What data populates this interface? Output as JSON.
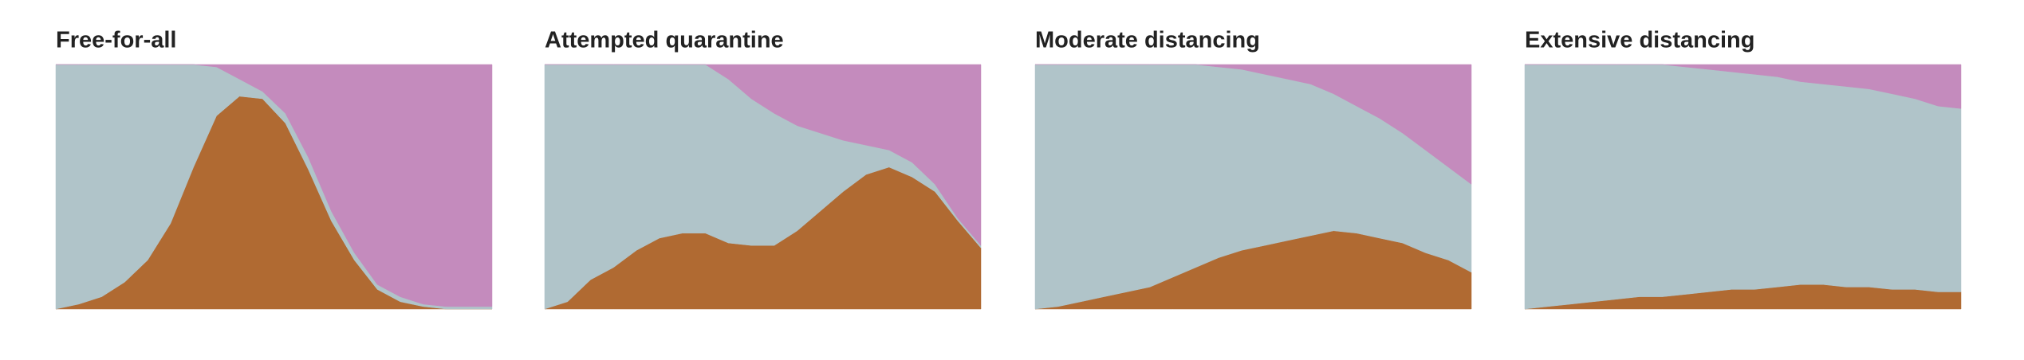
{
  "chart_data": [
    {
      "type": "area",
      "title": "Free-for-all",
      "stacked": true,
      "ylim": [
        0,
        100
      ],
      "series": [
        {
          "color": "#b06a32",
          "values": [
            0,
            2,
            5,
            11,
            20,
            35,
            58,
            79,
            87,
            86,
            76,
            57,
            36,
            20,
            8,
            3,
            1,
            0,
            0,
            0
          ]
        },
        {
          "color": "#b0c4c9",
          "values": [
            100,
            98,
            95,
            89,
            80,
            65,
            42,
            20,
            7,
            3,
            4,
            5,
            4,
            3,
            2,
            2,
            1,
            1,
            1,
            1
          ]
        },
        {
          "color": "#c48bbd",
          "values": [
            0,
            0,
            0,
            0,
            0,
            0,
            0,
            1,
            6,
            11,
            20,
            38,
            60,
            77,
            90,
            95,
            98,
            99,
            99,
            99
          ]
        }
      ]
    },
    {
      "type": "area",
      "title": "Attempted quarantine",
      "stacked": true,
      "ylim": [
        0,
        100
      ],
      "series": [
        {
          "color": "#b06a32",
          "values": [
            0,
            3,
            12,
            17,
            24,
            29,
            31,
            31,
            27,
            26,
            26,
            32,
            40,
            48,
            55,
            58,
            54,
            48,
            36,
            25
          ]
        },
        {
          "color": "#b0c4c9",
          "values": [
            100,
            97,
            88,
            83,
            76,
            71,
            69,
            69,
            67,
            60,
            54,
            43,
            32,
            21,
            12,
            7,
            6,
            3,
            1,
            1
          ]
        },
        {
          "color": "#c48bbd",
          "values": [
            0,
            0,
            0,
            0,
            0,
            0,
            0,
            0,
            6,
            14,
            20,
            25,
            28,
            31,
            33,
            35,
            40,
            49,
            63,
            74
          ]
        }
      ]
    },
    {
      "type": "area",
      "title": "Moderate distancing",
      "stacked": true,
      "ylim": [
        0,
        100
      ],
      "series": [
        {
          "color": "#b06a32",
          "values": [
            0,
            1,
            3,
            5,
            7,
            9,
            13,
            17,
            21,
            24,
            26,
            28,
            30,
            32,
            31,
            29,
            27,
            23,
            20,
            15
          ]
        },
        {
          "color": "#b0c4c9",
          "values": [
            100,
            99,
            97,
            95,
            93,
            91,
            87,
            83,
            78,
            74,
            70,
            66,
            62,
            56,
            52,
            49,
            45,
            42,
            38,
            36
          ]
        },
        {
          "color": "#c48bbd",
          "values": [
            0,
            0,
            0,
            0,
            0,
            0,
            0,
            0,
            1,
            2,
            4,
            6,
            8,
            12,
            17,
            22,
            28,
            35,
            42,
            49
          ]
        }
      ]
    },
    {
      "type": "area",
      "title": "Extensive distancing",
      "stacked": true,
      "ylim": [
        0,
        100
      ],
      "series": [
        {
          "color": "#b06a32",
          "values": [
            0,
            1,
            2,
            3,
            4,
            5,
            5,
            6,
            7,
            8,
            8,
            9,
            10,
            10,
            9,
            9,
            8,
            8,
            7,
            7
          ]
        },
        {
          "color": "#b0c4c9",
          "values": [
            100,
            99,
            98,
            97,
            96,
            95,
            95,
            93,
            91,
            89,
            88,
            86,
            83,
            82,
            82,
            81,
            80,
            78,
            76,
            75
          ]
        },
        {
          "color": "#c48bbd",
          "values": [
            0,
            0,
            0,
            0,
            0,
            0,
            0,
            1,
            2,
            3,
            4,
            5,
            7,
            8,
            9,
            10,
            12,
            14,
            17,
            18
          ]
        }
      ]
    }
  ]
}
